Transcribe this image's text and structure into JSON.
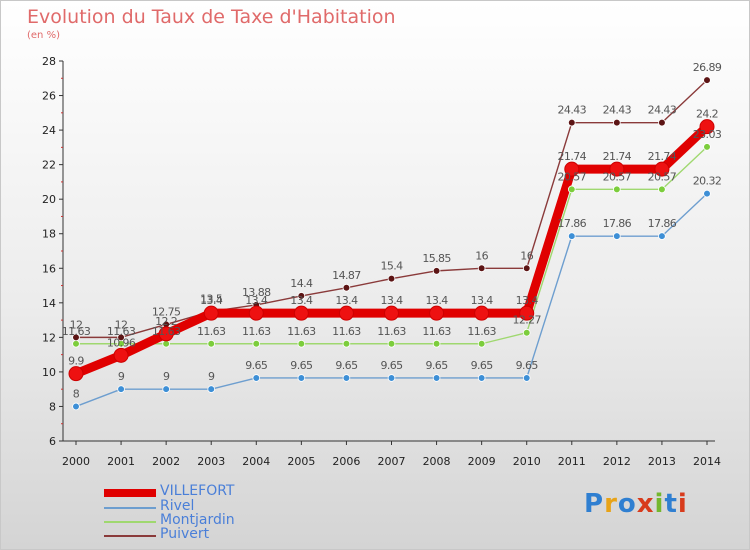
{
  "title": "Evolution du Taux de Taxe d'Habitation",
  "subtitle": "(en %)",
  "logo": "Proxiti",
  "chart_data": {
    "type": "line",
    "x": [
      2000,
      2001,
      2002,
      2003,
      2004,
      2005,
      2006,
      2007,
      2008,
      2009,
      2010,
      2011,
      2012,
      2013,
      2014
    ],
    "ylim": [
      6,
      28
    ],
    "yticks": [
      6,
      8,
      10,
      12,
      14,
      16,
      18,
      20,
      22,
      24,
      26,
      28
    ],
    "grid": false,
    "legend_position": "bottom-left",
    "series": [
      {
        "name": "VILLEFORT",
        "color": "#e00000",
        "marker_fill": "#ee1111",
        "values": [
          9.9,
          10.96,
          12.2,
          13.4,
          13.4,
          13.4,
          13.4,
          13.4,
          13.4,
          13.4,
          13.4,
          21.74,
          21.74,
          21.74,
          24.2
        ],
        "labels": [
          "9.9",
          "10.96",
          "12.2",
          "13.4",
          "13.4",
          "13.4",
          "13.4",
          "13.4",
          "13.4",
          "13.4",
          "13.4",
          "21.74",
          "21.74",
          "21.74",
          "24.2"
        ]
      },
      {
        "name": "Rivel",
        "color": "#6d9ecf",
        "marker_fill": "#3d8fd6",
        "values": [
          8,
          9,
          9,
          9,
          9.65,
          9.65,
          9.65,
          9.65,
          9.65,
          9.65,
          9.65,
          17.86,
          17.86,
          17.86,
          20.32
        ],
        "labels": [
          "8",
          "9",
          "9",
          "9",
          "9.65",
          "9.65",
          "9.65",
          "9.65",
          "9.65",
          "9.65",
          "9.65",
          "17.86",
          "17.86",
          "17.86",
          "20.32"
        ]
      },
      {
        "name": "Montjardin",
        "color": "#9fd86f",
        "marker_fill": "#7ccd3c",
        "values": [
          11.63,
          11.63,
          11.63,
          11.63,
          11.63,
          11.63,
          11.63,
          11.63,
          11.63,
          11.63,
          12.27,
          20.57,
          20.57,
          20.57,
          23.03
        ],
        "labels": [
          "11.63",
          "11.63",
          "11.63",
          "11.63",
          "11.63",
          "11.63",
          "11.63",
          "11.63",
          "11.63",
          "11.63",
          "12.27",
          "20.57",
          "20.57",
          "20.57",
          "23.03"
        ]
      },
      {
        "name": "Puivert",
        "color": "#8a3a3a",
        "marker_fill": "#5c1414",
        "values": [
          12,
          12,
          12.75,
          13.5,
          13.88,
          14.4,
          14.87,
          15.4,
          15.85,
          16,
          16,
          24.43,
          24.43,
          24.43,
          26.89
        ],
        "labels": [
          "12",
          "12",
          "12.75",
          "13.5",
          "13.88",
          "14.4",
          "14.87",
          "15.4",
          "15.85",
          "16",
          "16",
          "24.43",
          "24.43",
          "24.43",
          "26.89"
        ]
      }
    ]
  }
}
